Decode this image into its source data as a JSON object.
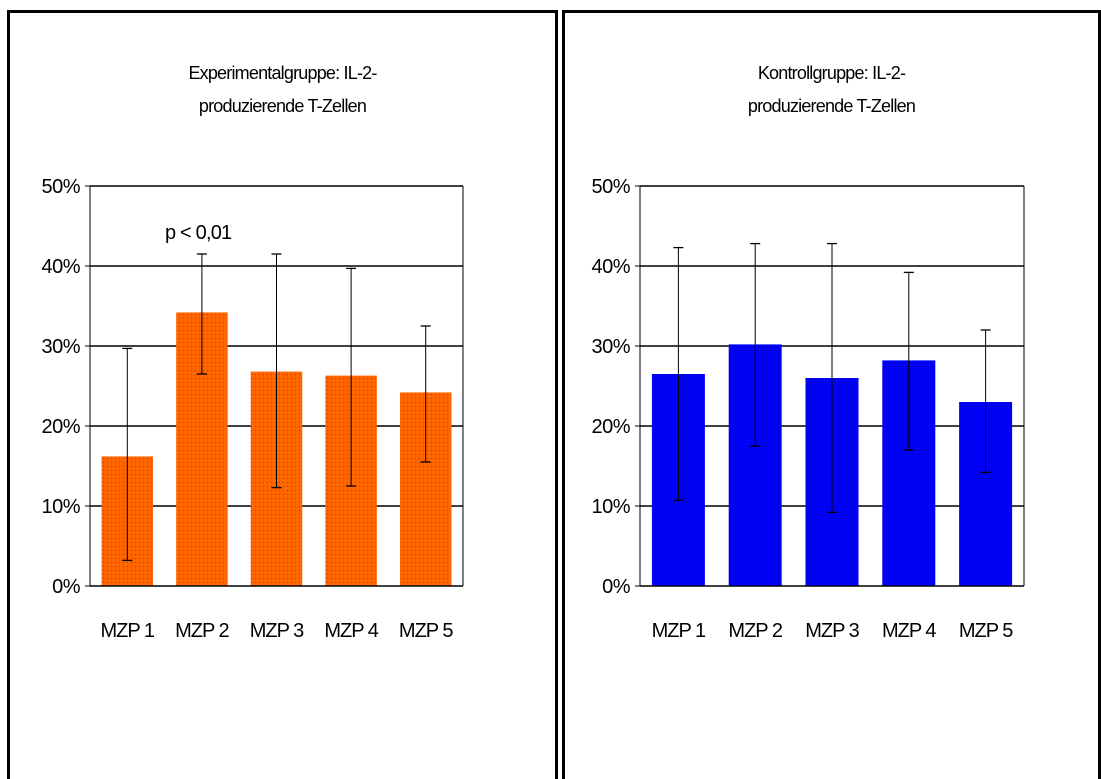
{
  "chart_data": [
    {
      "type": "bar",
      "title_lines": [
        "Experimentalgruppe: IL-2-",
        "produzierende T-Zellen"
      ],
      "categories": [
        "MZP 1",
        "MZP 2",
        "MZP 3",
        "MZP 4",
        "MZP 5"
      ],
      "values": [
        16.2,
        34.2,
        26.8,
        26.3,
        24.2
      ],
      "error_low": [
        3.2,
        26.5,
        12.3,
        12.5,
        15.5
      ],
      "error_high": [
        29.7,
        41.5,
        41.5,
        39.7,
        32.5
      ],
      "ylim": [
        0,
        50
      ],
      "yticks": [
        "0%",
        "10%",
        "20%",
        "30%",
        "40%",
        "50%"
      ],
      "annotation": "p < 0,01",
      "bar_color": "#ff6600",
      "grid": true
    },
    {
      "type": "bar",
      "title_lines": [
        "Kontrollgruppe: IL-2-",
        "produzierende T-Zellen"
      ],
      "categories": [
        "MZP 1",
        "MZP 2",
        "MZP 3",
        "MZP 4",
        "MZP 5"
      ],
      "values": [
        26.5,
        30.2,
        26.0,
        28.2,
        23.0
      ],
      "error_low": [
        10.7,
        17.5,
        9.2,
        17.0,
        14.2
      ],
      "error_high": [
        42.3,
        42.8,
        42.8,
        39.2,
        32.0
      ],
      "ylim": [
        0,
        50
      ],
      "yticks": [
        "0%",
        "10%",
        "20%",
        "30%",
        "40%",
        "50%"
      ],
      "bar_color": "#0000ff",
      "grid": true
    }
  ]
}
